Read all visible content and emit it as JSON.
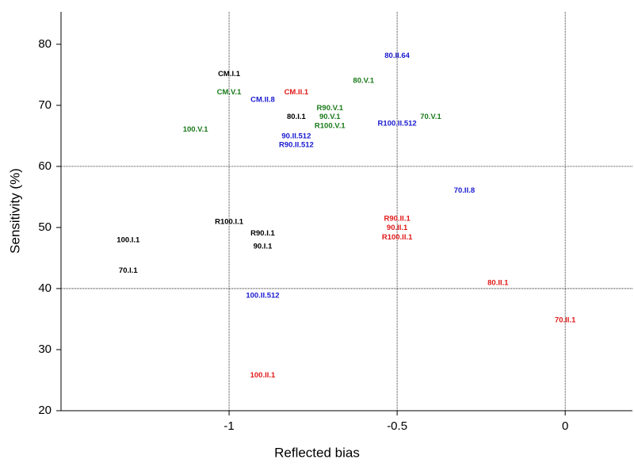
{
  "chart_data": {
    "type": "scatter",
    "x_label": "Reflected bias",
    "y_label": "Sensitivity (%)",
    "labels": [
      "CM.I.1",
      "CM.V.1",
      "CM.II.8",
      "CM.II.1",
      "80.I.1",
      "100.V.1",
      "80.II.64",
      "80.V.1",
      "R90.V.1",
      "90.V.1",
      "R100.V.1",
      "70.V.1",
      "R100.II.512",
      "90.II.512",
      "R90.II.512",
      "70.II.8",
      "R100.I.1",
      "R90.I.1",
      "90.I.1",
      "100.I.1",
      "70.I.1",
      "R90.II.1",
      "90.II.1",
      "R100.II.1",
      "80.II.1",
      "70.II.1",
      "100.II.512",
      "100.II.1"
    ],
    "x": [
      -1.0,
      -1.0,
      -0.9,
      -0.8,
      -0.8,
      -1.1,
      -0.5,
      -0.6,
      -0.7,
      -0.7,
      -0.7,
      -0.4,
      -0.5,
      -0.8,
      -0.8,
      -0.3,
      -1.0,
      -0.9,
      -0.9,
      -1.3,
      -1.3,
      -0.5,
      -0.5,
      -0.5,
      -0.2,
      0.0,
      -0.9,
      -0.9
    ],
    "y": [
      75.1,
      72.1,
      70.9,
      72.1,
      68.1,
      66.0,
      78.1,
      74.0,
      69.5,
      68.1,
      66.6,
      68.1,
      67.0,
      64.9,
      63.5,
      56.0,
      50.9,
      49.0,
      46.9,
      47.9,
      42.9,
      51.4,
      49.9,
      48.4,
      40.9,
      34.8,
      38.8,
      25.8
    ],
    "colors": [
      "#000000",
      "#1a7a1a",
      "#1a1ad0",
      "#e01a1a",
      "#000000",
      "#1a7a1a",
      "#1a1ad0",
      "#1a7a1a",
      "#1a7a1a",
      "#1a7a1a",
      "#1a7a1a",
      "#1a7a1a",
      "#1a1ad0",
      "#1a1ad0",
      "#1a1ad0",
      "#1a1ad0",
      "#000000",
      "#000000",
      "#000000",
      "#000000",
      "#000000",
      "#e01a1a",
      "#e01a1a",
      "#e01a1a",
      "#e01a1a",
      "#e01a1a",
      "#1a1ad0",
      "#e01a1a"
    ],
    "xlim": [
      -1.5,
      0.2
    ],
    "ylim": [
      20,
      85.3
    ],
    "xticks": [
      -1,
      -0.5,
      0
    ],
    "yticks": [
      20,
      30,
      40,
      50,
      60,
      70,
      80
    ],
    "hlines": [
      40,
      60
    ],
    "grid": "x"
  }
}
